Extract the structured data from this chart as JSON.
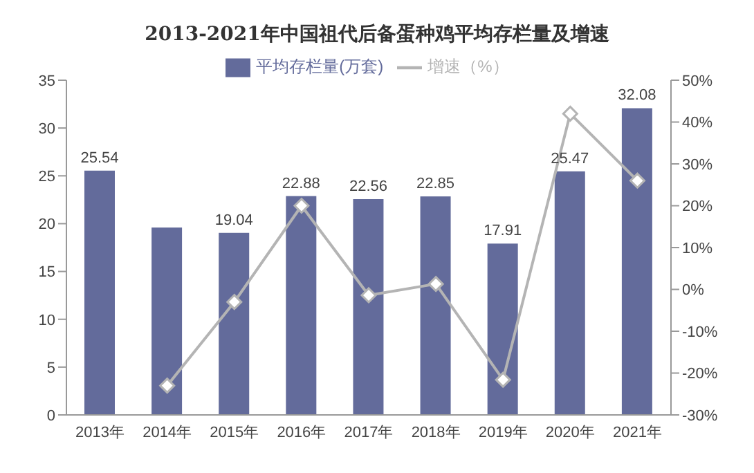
{
  "chart_data": {
    "type": "bar",
    "title": "2013-2021年中国祖代后备蛋种鸡平均存栏量及增速",
    "categories": [
      "2013年",
      "2014年",
      "2015年",
      "2016年",
      "2017年",
      "2018年",
      "2019年",
      "2020年",
      "2021年"
    ],
    "series": [
      {
        "name": "平均存栏量(万套)",
        "color": "#636b9b",
        "values": [
          25.54,
          19.6,
          19.04,
          22.88,
          22.56,
          22.85,
          17.91,
          25.47,
          32.08
        ],
        "value_labels": [
          "25.54",
          null,
          "19.04",
          "22.88",
          "22.56",
          "22.85",
          "17.91",
          "25.47",
          "32.08"
        ]
      },
      {
        "name": "增速（%）",
        "type": "line",
        "axis": "y2",
        "color": "#b4b4b4",
        "marker": "diamond",
        "values": [
          null,
          -23,
          -3,
          20,
          -1.4,
          1.3,
          -21.6,
          42,
          26
        ]
      }
    ],
    "ylim": [
      0,
      35
    ],
    "yticks": [
      0,
      5,
      10,
      15,
      20,
      25,
      30,
      35
    ],
    "y2lim": [
      -30,
      50
    ],
    "y2ticks": [
      {
        "value": -30,
        "label": "-30%"
      },
      {
        "value": -20,
        "label": "-20%"
      },
      {
        "value": -10,
        "label": "-10%"
      },
      {
        "value": 0,
        "label": "0%"
      },
      {
        "value": 10,
        "label": "10%"
      },
      {
        "value": 20,
        "label": "20%"
      },
      {
        "value": 30,
        "label": "30%"
      },
      {
        "value": 40,
        "label": "40%"
      },
      {
        "value": 50,
        "label": "50%"
      }
    ],
    "legend": "top",
    "grid": false
  }
}
